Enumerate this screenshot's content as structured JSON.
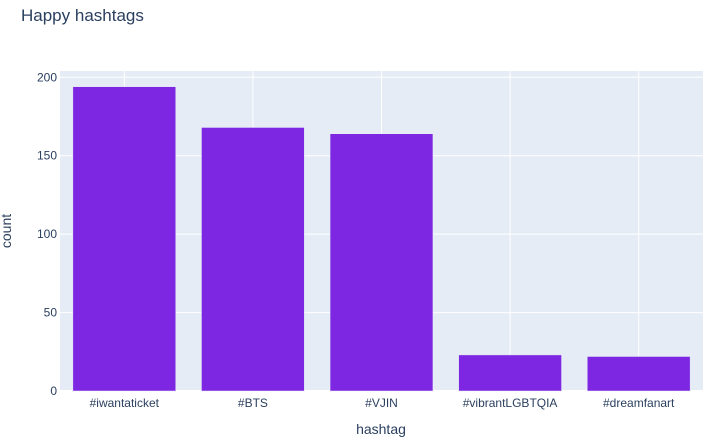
{
  "chart_data": {
    "type": "bar",
    "title": "Happy hashtags",
    "xlabel": "hashtag",
    "ylabel": "count",
    "categories": [
      "#iwantaticket",
      "#BTS",
      "#VJIN",
      "#vibrantLGBTQIA",
      "#dreamfanart"
    ],
    "values": [
      194,
      168,
      164,
      23,
      22
    ],
    "ylim": [
      0,
      204
    ],
    "yticks": [
      0,
      50,
      100,
      150,
      200
    ],
    "grid": true,
    "legend": "none"
  },
  "colors": {
    "bar": "#7e27e2",
    "plot_bg": "#e5ecf6",
    "grid": "#ffffff",
    "text": "#2a3f5f"
  }
}
